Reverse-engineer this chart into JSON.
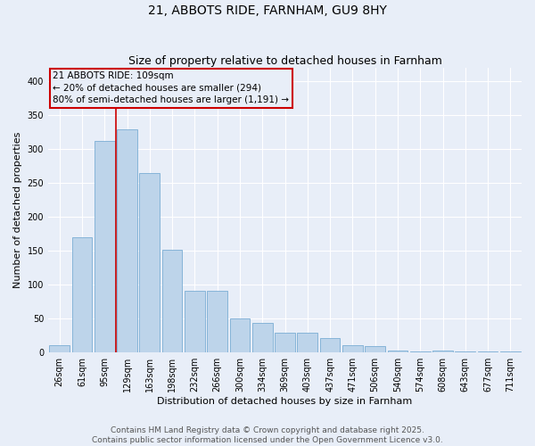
{
  "title": "21, ABBOTS RIDE, FARNHAM, GU9 8HY",
  "subtitle": "Size of property relative to detached houses in Farnham",
  "xlabel": "Distribution of detached houses by size in Farnham",
  "ylabel": "Number of detached properties",
  "categories": [
    "26sqm",
    "61sqm",
    "95sqm",
    "129sqm",
    "163sqm",
    "198sqm",
    "232sqm",
    "266sqm",
    "300sqm",
    "334sqm",
    "369sqm",
    "403sqm",
    "437sqm",
    "471sqm",
    "506sqm",
    "540sqm",
    "574sqm",
    "608sqm",
    "643sqm",
    "677sqm",
    "711sqm"
  ],
  "values": [
    11,
    170,
    312,
    329,
    265,
    151,
    91,
    91,
    50,
    43,
    29,
    29,
    21,
    11,
    9,
    3,
    2,
    3,
    1,
    1,
    2
  ],
  "bar_color": "#bdd4ea",
  "bar_edge_color": "#7aadd4",
  "bg_color": "#e8eef8",
  "grid_color": "#ffffff",
  "vline_x": 2.5,
  "vline_color": "#cc0000",
  "annotation_text": "21 ABBOTS RIDE: 109sqm\n← 20% of detached houses are smaller (294)\n80% of semi-detached houses are larger (1,191) →",
  "annotation_box_color": "#cc0000",
  "ylim": [
    0,
    420
  ],
  "yticks": [
    0,
    50,
    100,
    150,
    200,
    250,
    300,
    350,
    400
  ],
  "footer": "Contains HM Land Registry data © Crown copyright and database right 2025.\nContains public sector information licensed under the Open Government Licence v3.0.",
  "title_fontsize": 10,
  "subtitle_fontsize": 9,
  "axis_label_fontsize": 8,
  "tick_fontsize": 7,
  "footer_fontsize": 6.5,
  "annotation_fontsize": 7.5
}
